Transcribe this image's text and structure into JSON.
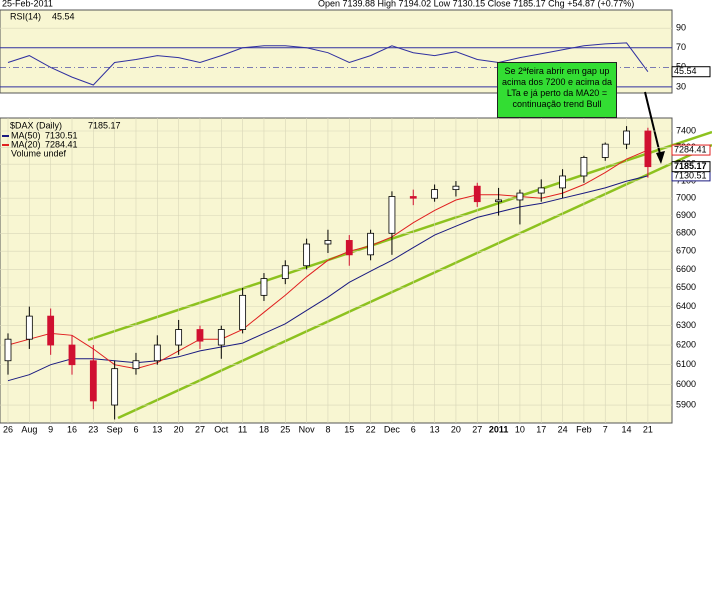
{
  "header": {
    "date": "25-Feb-2011",
    "quote": "Open 7139.88  High 7194.02  Low 7130.15  Close 7185.17  Chg +54.87 (+0.77%)"
  },
  "annotation": "Se 2ªfeira abrir em gap up acima dos 7200 e acima da LTa e já perto da MA20 = continuação trend Bull",
  "chart_data": [
    {
      "type": "candlestick",
      "title": "$DAX (Daily)",
      "value_label": "7185.17",
      "volume_label": "Volume undef",
      "categories": [
        "26",
        "Aug",
        "9",
        "16",
        "23",
        "Sep",
        "6",
        "13",
        "20",
        "27",
        "Oct",
        "11",
        "18",
        "25",
        "Nov",
        "8",
        "15",
        "22",
        "Dec",
        "6",
        "13",
        "20",
        "27",
        "2011",
        "10",
        "17",
        "24",
        "Feb",
        "7",
        "14",
        "21"
      ],
      "open": [
        6120,
        6230,
        6350,
        6200,
        6120,
        5900,
        6080,
        6120,
        6200,
        6280,
        6200,
        6280,
        6460,
        6550,
        6620,
        6740,
        6760,
        6680,
        6800,
        7010,
        7000,
        7050,
        7070,
        6980,
        6990,
        7030,
        7060,
        7130,
        7240,
        7320,
        7400
      ],
      "high": [
        6260,
        6400,
        6390,
        6250,
        6200,
        6120,
        6160,
        6250,
        6330,
        6300,
        6300,
        6500,
        6580,
        6650,
        6770,
        6820,
        6790,
        6820,
        7040,
        7050,
        7080,
        7100,
        7090,
        7060,
        7050,
        7110,
        7170,
        7250,
        7330,
        7430,
        7420
      ],
      "low": [
        6050,
        6180,
        6150,
        6050,
        5880,
        5830,
        6050,
        6100,
        6150,
        6180,
        6130,
        6260,
        6430,
        6520,
        6600,
        6690,
        6620,
        6650,
        6680,
        6960,
        6980,
        7010,
        6950,
        6900,
        6850,
        6980,
        7000,
        7090,
        7220,
        7290,
        7120
      ],
      "close": [
        6230,
        6350,
        6200,
        6100,
        5920,
        6080,
        6120,
        6200,
        6280,
        6220,
        6280,
        6460,
        6550,
        6620,
        6740,
        6760,
        6680,
        6800,
        7010,
        7000,
        7050,
        7070,
        6980,
        6990,
        7030,
        7060,
        7130,
        7240,
        7320,
        7400,
        7185
      ],
      "up_color": "#ffffff",
      "down_color": "#d01030",
      "series": [
        {
          "name": "MA(50)",
          "value_label": "7130.51",
          "color": "#1a1a80",
          "values": [
            6020,
            6050,
            6100,
            6130,
            6130,
            6120,
            6110,
            6120,
            6140,
            6170,
            6190,
            6210,
            6260,
            6310,
            6380,
            6450,
            6530,
            6590,
            6650,
            6720,
            6790,
            6840,
            6890,
            6920,
            6950,
            6970,
            7000,
            7030,
            7060,
            7100,
            7130.51
          ]
        },
        {
          "name": "MA(20)",
          "value_label": "7284.41",
          "color": "#e02020",
          "values": [
            6200,
            6230,
            6260,
            6250,
            6180,
            6100,
            6080,
            6110,
            6170,
            6230,
            6230,
            6280,
            6370,
            6460,
            6560,
            6650,
            6700,
            6730,
            6780,
            6860,
            6930,
            6990,
            7020,
            7020,
            7010,
            7000,
            7030,
            7080,
            7150,
            7230,
            7284.41
          ]
        }
      ],
      "ylim": [
        5813,
        7480
      ],
      "log_scale": true,
      "grid": true,
      "yticks": [
        5900,
        6000,
        6100,
        6200,
        6300,
        6400,
        6500,
        6600,
        6700,
        6800,
        6900,
        7000,
        7100,
        7200,
        7300,
        7400
      ]
    },
    {
      "type": "line",
      "title": "RSI(14)",
      "value_label": "45.54",
      "series": [
        {
          "name": "RSI(14)",
          "color": "#3030a0",
          "values": [
            55,
            62,
            50,
            40,
            32,
            55,
            58,
            62,
            60,
            55,
            62,
            70,
            72,
            72,
            70,
            65,
            55,
            62,
            72,
            65,
            62,
            66,
            58,
            55,
            60,
            64,
            68,
            72,
            74,
            75,
            45.54
          ]
        }
      ],
      "ylim": [
        23.8,
        108.6
      ],
      "yticks": [
        30,
        50,
        70,
        90
      ],
      "grid": true
    }
  ]
}
